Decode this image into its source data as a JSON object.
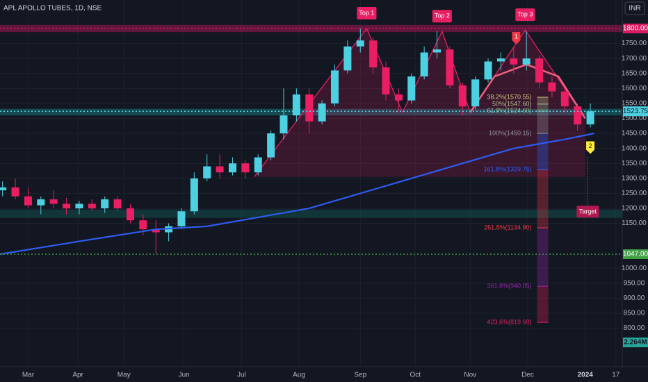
{
  "chart_data": {
    "type": "candlestick",
    "title": "APL APOLLO TUBES, 1D, NSE",
    "currency": "INR",
    "up_color": "#4dd0e1",
    "down_color": "#e91e63",
    "grid": true,
    "xlim": [
      -2.2,
      46.5
    ],
    "ylim": [
      736.5,
      1895
    ],
    "xticks": [
      {
        "value": 0,
        "label": "Mar"
      },
      {
        "value": 3.9,
        "label": "Apr"
      },
      {
        "value": 7.5,
        "label": "May"
      },
      {
        "value": 12.2,
        "label": "Jun"
      },
      {
        "value": 16.7,
        "label": "Jul"
      },
      {
        "value": 21.2,
        "label": "Aug"
      },
      {
        "value": 26,
        "label": "Sep"
      },
      {
        "value": 30.3,
        "label": "Oct"
      },
      {
        "value": 34.6,
        "label": "Nov"
      },
      {
        "value": 39.1,
        "label": "Dec"
      },
      {
        "value": 43.6,
        "label": "2024"
      },
      {
        "value": 46,
        "label": "17"
      }
    ],
    "yticks": [
      {
        "value": 1750,
        "label": "1750.00"
      },
      {
        "value": 1700,
        "label": "1700.00"
      },
      {
        "value": 1650,
        "label": "1650.00"
      },
      {
        "value": 1600,
        "label": "1600.00"
      },
      {
        "value": 1550,
        "label": "1550.00"
      },
      {
        "value": 1500,
        "label": "1500.00"
      },
      {
        "value": 1450,
        "label": "1450.00"
      },
      {
        "value": 1400,
        "label": "1400.00"
      },
      {
        "value": 1350,
        "label": "1350.00"
      },
      {
        "value": 1300,
        "label": "1300.00"
      },
      {
        "value": 1250,
        "label": "1250.00"
      },
      {
        "value": 1200,
        "label": "1200.00"
      },
      {
        "value": 1150,
        "label": "1150.00"
      },
      {
        "value": 1000,
        "label": "1000.00"
      },
      {
        "value": 950,
        "label": "950.00"
      },
      {
        "value": 900,
        "label": "900.00"
      },
      {
        "value": 850,
        "label": "850.00"
      },
      {
        "value": 800,
        "label": "800.00"
      }
    ],
    "x": [
      -2,
      -1,
      0,
      1,
      2,
      3,
      4,
      5,
      6,
      7,
      8,
      9,
      10,
      11,
      12,
      13,
      14,
      15,
      16,
      17,
      18,
      19,
      20,
      21,
      22,
      23,
      24,
      25,
      26,
      27,
      28,
      29,
      30,
      31,
      32,
      33,
      34,
      35,
      36,
      37,
      38,
      39,
      40,
      41,
      42,
      43,
      44
    ],
    "open": [
      1260,
      1270,
      1240,
      1210,
      1230,
      1215,
      1200,
      1215,
      1200,
      1230,
      1200,
      1160,
      1130,
      1120,
      1140,
      1190,
      1300,
      1340,
      1320,
      1350,
      1320,
      1370,
      1450,
      1510,
      1580,
      1490,
      1550,
      1660,
      1740,
      1760,
      1670,
      1580,
      1560,
      1640,
      1720,
      1730,
      1610,
      1540,
      1630,
      1690,
      1700,
      1680,
      1700,
      1620,
      1590,
      1540,
      1480
    ],
    "high": [
      1290,
      1300,
      1270,
      1240,
      1260,
      1235,
      1225,
      1230,
      1240,
      1240,
      1215,
      1180,
      1160,
      1150,
      1200,
      1320,
      1380,
      1380,
      1370,
      1360,
      1380,
      1460,
      1600,
      1600,
      1600,
      1560,
      1680,
      1760,
      1800,
      1770,
      1690,
      1600,
      1650,
      1740,
      1790,
      1740,
      1620,
      1640,
      1700,
      1720,
      1740,
      1790,
      1710,
      1640,
      1600,
      1550,
      1550
    ],
    "low": [
      1240,
      1230,
      1200,
      1180,
      1200,
      1180,
      1180,
      1190,
      1185,
      1190,
      1150,
      1110,
      1050,
      1090,
      1130,
      1180,
      1290,
      1300,
      1310,
      1300,
      1310,
      1360,
      1430,
      1490,
      1450,
      1480,
      1540,
      1650,
      1720,
      1650,
      1560,
      1520,
      1550,
      1630,
      1700,
      1600,
      1510,
      1530,
      1620,
      1660,
      1650,
      1660,
      1600,
      1570,
      1520,
      1460,
      1470
    ],
    "close": [
      1270,
      1240,
      1210,
      1230,
      1215,
      1200,
      1215,
      1200,
      1230,
      1200,
      1160,
      1130,
      1120,
      1140,
      1190,
      1300,
      1340,
      1320,
      1350,
      1320,
      1370,
      1450,
      1510,
      1580,
      1490,
      1550,
      1660,
      1740,
      1760,
      1670,
      1580,
      1560,
      1640,
      1720,
      1730,
      1610,
      1540,
      1630,
      1690,
      1700,
      1680,
      1700,
      1620,
      1590,
      1540,
      1480,
      1523.75
    ],
    "moving_average": {
      "color": "#2f5cf0",
      "x": [
        -2.2,
        4,
        10,
        14,
        18,
        22,
        26,
        30,
        34,
        38,
        42,
        44.3
      ],
      "values": [
        1047,
        1090,
        1130,
        1140,
        1170,
        1200,
        1250,
        1300,
        1350,
        1400,
        1430,
        1450
      ]
    },
    "zones": [
      {
        "from": 1788,
        "to": 1812,
        "color": "#c2185b"
      },
      {
        "from": 1510,
        "to": 1532,
        "color": "#1b8a8f"
      },
      {
        "from": 1168,
        "to": 1196,
        "color": "#0f5c55"
      }
    ],
    "price_labels": [
      {
        "value": 1800,
        "label": "1800.00",
        "color": "#d81b60"
      },
      {
        "value": 1523.75,
        "label": "1523.75",
        "color": "#4dd0e1"
      },
      {
        "value": 1047,
        "label": "1047.00",
        "color": "#43a047"
      }
    ],
    "pattern": {
      "color": "#e91e63",
      "x": [
        17.7,
        26.5,
        29.3,
        32.4,
        34.6,
        38.9,
        43.6
      ],
      "values": [
        1305,
        1800,
        1520,
        1790,
        1520,
        1795,
        1500
      ]
    },
    "arc": {
      "x": [
        34.6,
        36.5,
        39,
        41.5,
        43.6
      ],
      "values": [
        1520,
        1640,
        1680,
        1640,
        1500
      ]
    },
    "tops": [
      {
        "label": "Top 1",
        "x": 26.5,
        "value": 1800
      },
      {
        "label": "Top 2",
        "x": 32.4,
        "value": 1790
      },
      {
        "label": "Top 3",
        "x": 38.9,
        "value": 1795
      }
    ],
    "markers": [
      {
        "label": "1",
        "x": 38.2,
        "value": 1770,
        "color": "#f23645"
      },
      {
        "label": "2",
        "x": 44,
        "value": 1405,
        "color": "#ffeb3b"
      }
    ],
    "target": {
      "label": "Target",
      "x": 43.8,
      "value": 1190
    },
    "fib_x": 39.4,
    "fib_levels": [
      {
        "label": "38.2%(1570.55)",
        "value": 1570.55,
        "color": "#d4c67a"
      },
      {
        "label": "50%(1547.60)",
        "value": 1547.6,
        "color": "#b7c08a"
      },
      {
        "label": "61.8%(1524.60)",
        "value": 1524.6,
        "color": "#8fbf8f"
      },
      {
        "label": "100%(1450.15)",
        "value": 1450.15,
        "color": "#9598a1"
      },
      {
        "label": "161.8%(1329.75)",
        "value": 1329.75,
        "color": "#2962ff"
      },
      {
        "label": "261.8%(1134.90)",
        "value": 1134.9,
        "color": "#f23645"
      },
      {
        "label": "361.8%(940.05)",
        "value": 940.05,
        "color": "#9c27b0"
      },
      {
        "label": "423.6%(819.60)",
        "value": 819.6,
        "color": "#e91e63"
      }
    ],
    "volume_label": "2.264M"
  }
}
